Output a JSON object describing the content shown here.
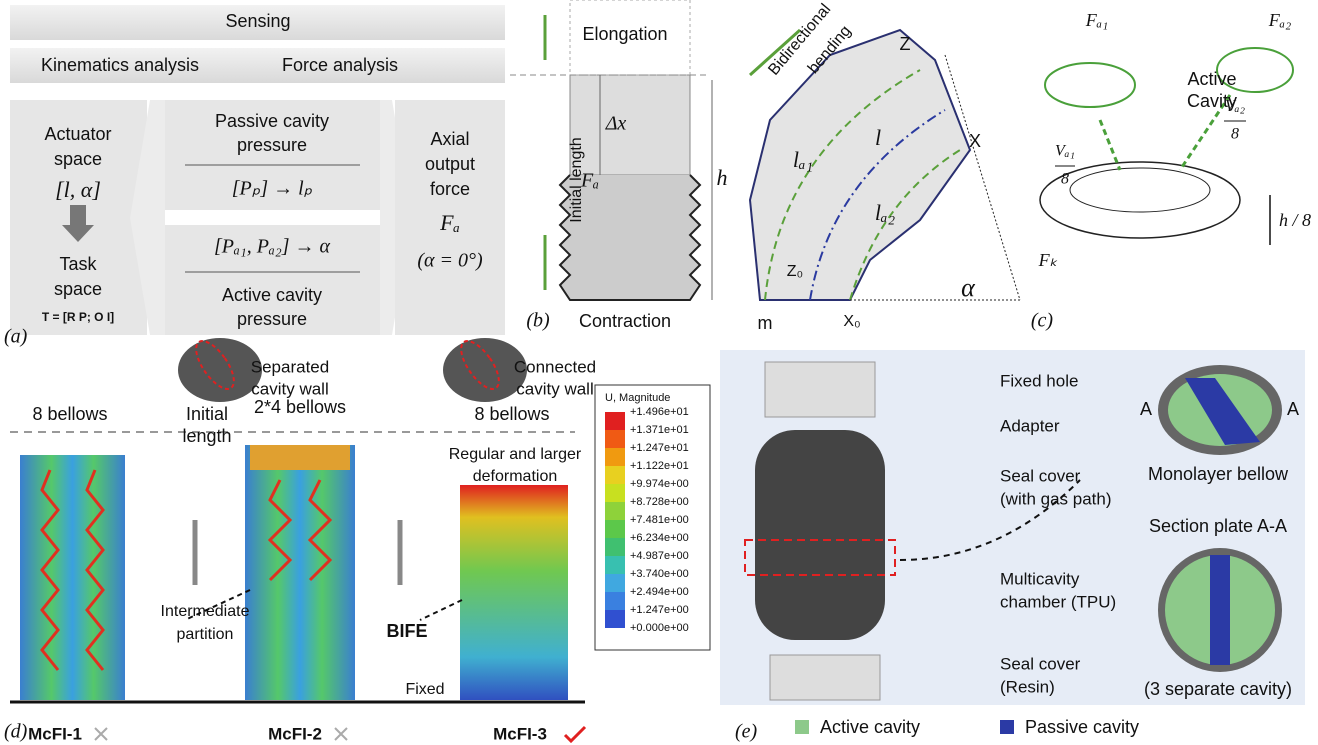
{
  "panel_a": {
    "label": "(a)",
    "sensing": "Sensing",
    "kinematics": "Kinematics analysis",
    "force": "Force analysis",
    "actuator": [
      "Actuator",
      "space"
    ],
    "actuator_vars": "[l, α]",
    "task": [
      "Task",
      "space"
    ],
    "task_matrix": "T = [R P; O I]",
    "passive": [
      "Passive cavity",
      "pressure"
    ],
    "passive_map": "[Pₚ] → lₚ",
    "active_map": "[Pₐ₁, Pₐ₂] → α",
    "active": [
      "Active cavity",
      "pressure"
    ],
    "output": [
      "Axial",
      "output",
      "force"
    ],
    "output_symbol": "Fₐ",
    "output_cond": "(α = 0°)"
  },
  "panel_b": {
    "label": "(b)",
    "elongation": "Elongation",
    "initial_length": "Initial length",
    "dx": "Δx",
    "fa": "Fₐ",
    "h": "h",
    "contraction": "Contraction",
    "bending": [
      "Bidirectional",
      "bending"
    ],
    "z": "Z",
    "x": "X",
    "l": "l",
    "la1": "lₐ₁",
    "la2": "lₐ₂",
    "z0": "Z₀",
    "x0": "X₀",
    "m": "m",
    "alpha": "α"
  },
  "panel_c": {
    "label": "(c)",
    "fa1": "Fₐ₁",
    "fa2": "Fₐ₂",
    "active": [
      "Active",
      "Cavity"
    ],
    "va1": [
      "Vₐ₁",
      "8"
    ],
    "va2": [
      "Vₐ₂",
      "8"
    ],
    "h8": "h / 8",
    "fk": "Fₖ"
  },
  "panel_d": {
    "label": "(d)",
    "separated": [
      "Separated",
      "cavity wall"
    ],
    "connected": [
      "Connected",
      "cavity wall"
    ],
    "bellows": [
      "8 bellows",
      "2*4 bellows",
      "8 bellows"
    ],
    "initial": [
      "Initial",
      "length"
    ],
    "regular": [
      "Regular and larger",
      "deformation"
    ],
    "intermediate": [
      "Intermediate",
      "partition"
    ],
    "bife": "BIFE",
    "fixed": "Fixed",
    "models": [
      "McFI-1",
      "McFI-2",
      "McFI-3"
    ],
    "legend": {
      "title": "U, Magnitude",
      "values": [
        "+1.496e+01",
        "+1.371e+01",
        "+1.247e+01",
        "+1.122e+01",
        "+9.974e+00",
        "+8.728e+00",
        "+7.481e+00",
        "+6.234e+00",
        "+4.987e+00",
        "+3.740e+00",
        "+2.494e+00",
        "+1.247e+00",
        "+0.000e+00"
      ]
    }
  },
  "panel_e": {
    "label": "(e)",
    "fixed_hole": "Fixed hole",
    "adapter": "Adapter",
    "seal_top": [
      "Seal cover",
      "(with gas path)"
    ],
    "chamber": [
      "Multicavity",
      "chamber (TPU)"
    ],
    "seal_bottom": [
      "Seal cover",
      "(Resin)"
    ],
    "section_a": [
      "A",
      "A"
    ],
    "monolayer": "Monolayer bellow",
    "section": "Section plate A-A",
    "separate": "(3 separate cavity)",
    "legend": [
      "Active cavity",
      "Passive cavity"
    ]
  }
}
